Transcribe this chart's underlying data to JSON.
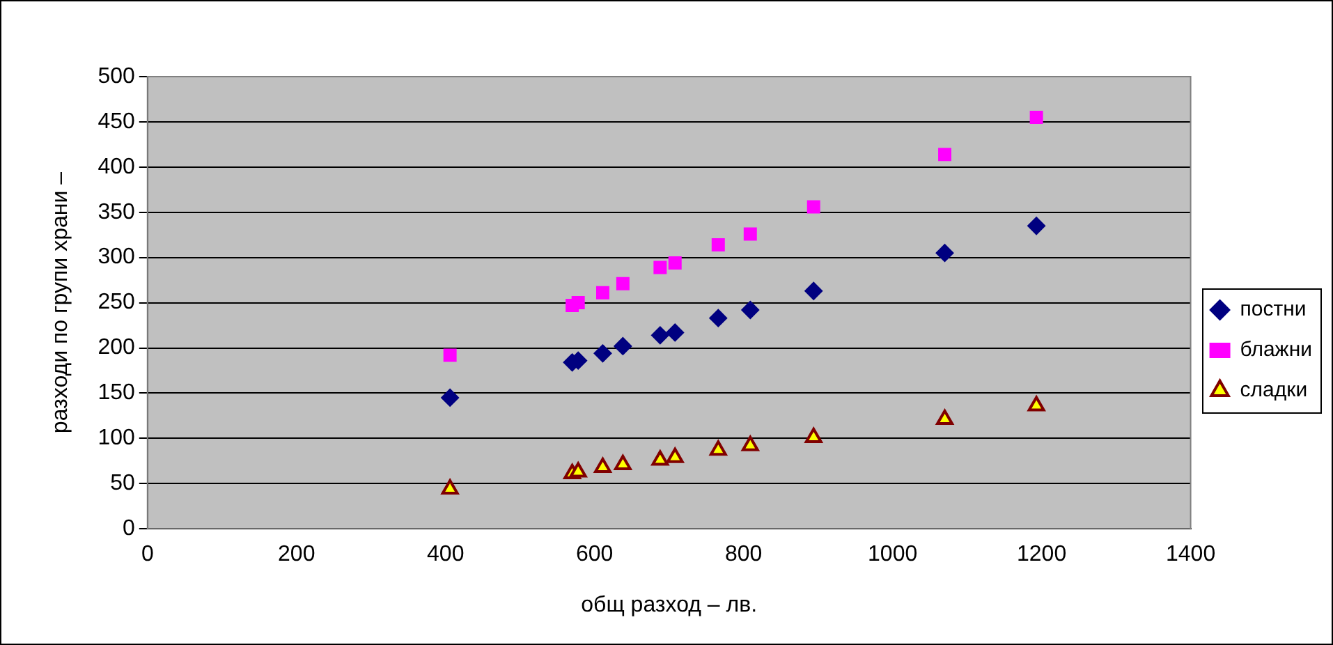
{
  "chart_data": {
    "type": "scatter",
    "xlabel": "общ разход – лв.",
    "ylabel": "разходи по групи храни –",
    "xlim": [
      0,
      1400
    ],
    "xticks": [
      0,
      200,
      400,
      600,
      800,
      1000,
      1200,
      1400
    ],
    "ylim": [
      0,
      500
    ],
    "yticks": [
      0,
      50,
      100,
      150,
      200,
      250,
      300,
      350,
      400,
      450,
      500
    ],
    "grid": "y",
    "legend": "right",
    "series": [
      {
        "name": "постни",
        "color": "#000080",
        "marker": "diamond",
        "x": [
          406,
          570,
          578,
          611,
          638,
          688,
          708,
          766,
          809,
          894,
          1070,
          1193
        ],
        "values": [
          145,
          184,
          186,
          194,
          202,
          214,
          217,
          233,
          242,
          263,
          305,
          335
        ]
      },
      {
        "name": "блажни",
        "color": "#ff00ff",
        "marker": "square",
        "x": [
          406,
          570,
          578,
          611,
          638,
          688,
          708,
          766,
          809,
          894,
          1070,
          1193
        ],
        "values": [
          192,
          247,
          250,
          261,
          271,
          289,
          294,
          314,
          326,
          356,
          414,
          455
        ]
      },
      {
        "name": "сладки",
        "color": "#ffff00",
        "marker": "triangle",
        "x": [
          406,
          570,
          578,
          611,
          638,
          688,
          708,
          766,
          809,
          894,
          1070,
          1193
        ],
        "values": [
          44,
          61,
          63,
          68,
          71,
          76,
          79,
          87,
          92,
          101,
          121,
          136
        ]
      }
    ]
  }
}
